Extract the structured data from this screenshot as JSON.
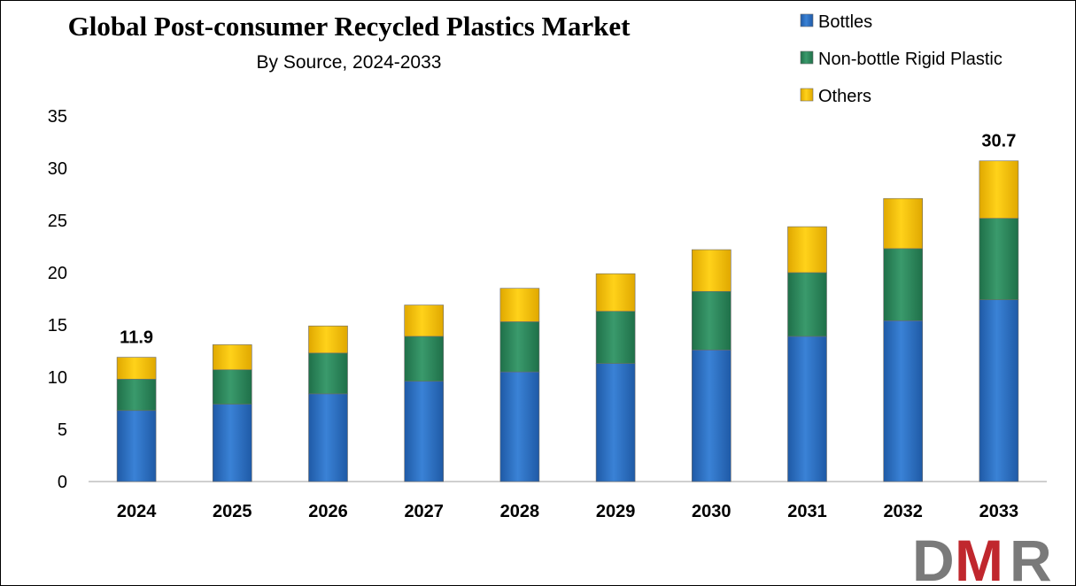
{
  "chart_data": {
    "type": "bar",
    "stacked": true,
    "title": "Global Post-consumer Recycled Plastics Market",
    "subtitle": "By Source, 2024-2033",
    "xlabel": "",
    "ylabel": "",
    "ylim": [
      0,
      35
    ],
    "yticks": [
      0,
      5,
      10,
      15,
      20,
      25,
      30,
      35
    ],
    "grid": false,
    "legend_position": "top-right",
    "categories": [
      "2024",
      "2025",
      "2026",
      "2027",
      "2028",
      "2029",
      "2030",
      "2031",
      "2032",
      "2033"
    ],
    "series": [
      {
        "name": "Bottles",
        "color": "#2f6fbf",
        "values": [
          6.8,
          7.4,
          8.4,
          9.6,
          10.5,
          11.3,
          12.6,
          13.9,
          15.4,
          17.4
        ]
      },
      {
        "name": "Non-bottle Rigid Plastic",
        "color": "#2e8b60",
        "values": [
          3.0,
          3.3,
          3.9,
          4.3,
          4.8,
          5.0,
          5.6,
          6.1,
          6.9,
          7.8
        ]
      },
      {
        "name": "Others",
        "color": "#f5c400",
        "values": [
          2.1,
          2.4,
          2.6,
          3.0,
          3.2,
          3.6,
          4.0,
          4.4,
          4.8,
          5.5
        ]
      }
    ],
    "annotations": [
      {
        "category": "2024",
        "text": "11.9"
      },
      {
        "category": "2033",
        "text": "30.7"
      }
    ]
  },
  "logo": {
    "text": "DMR",
    "colors": {
      "D": "#7a7a7a",
      "M": "#c0272d",
      "R": "#7a7a7a"
    }
  }
}
